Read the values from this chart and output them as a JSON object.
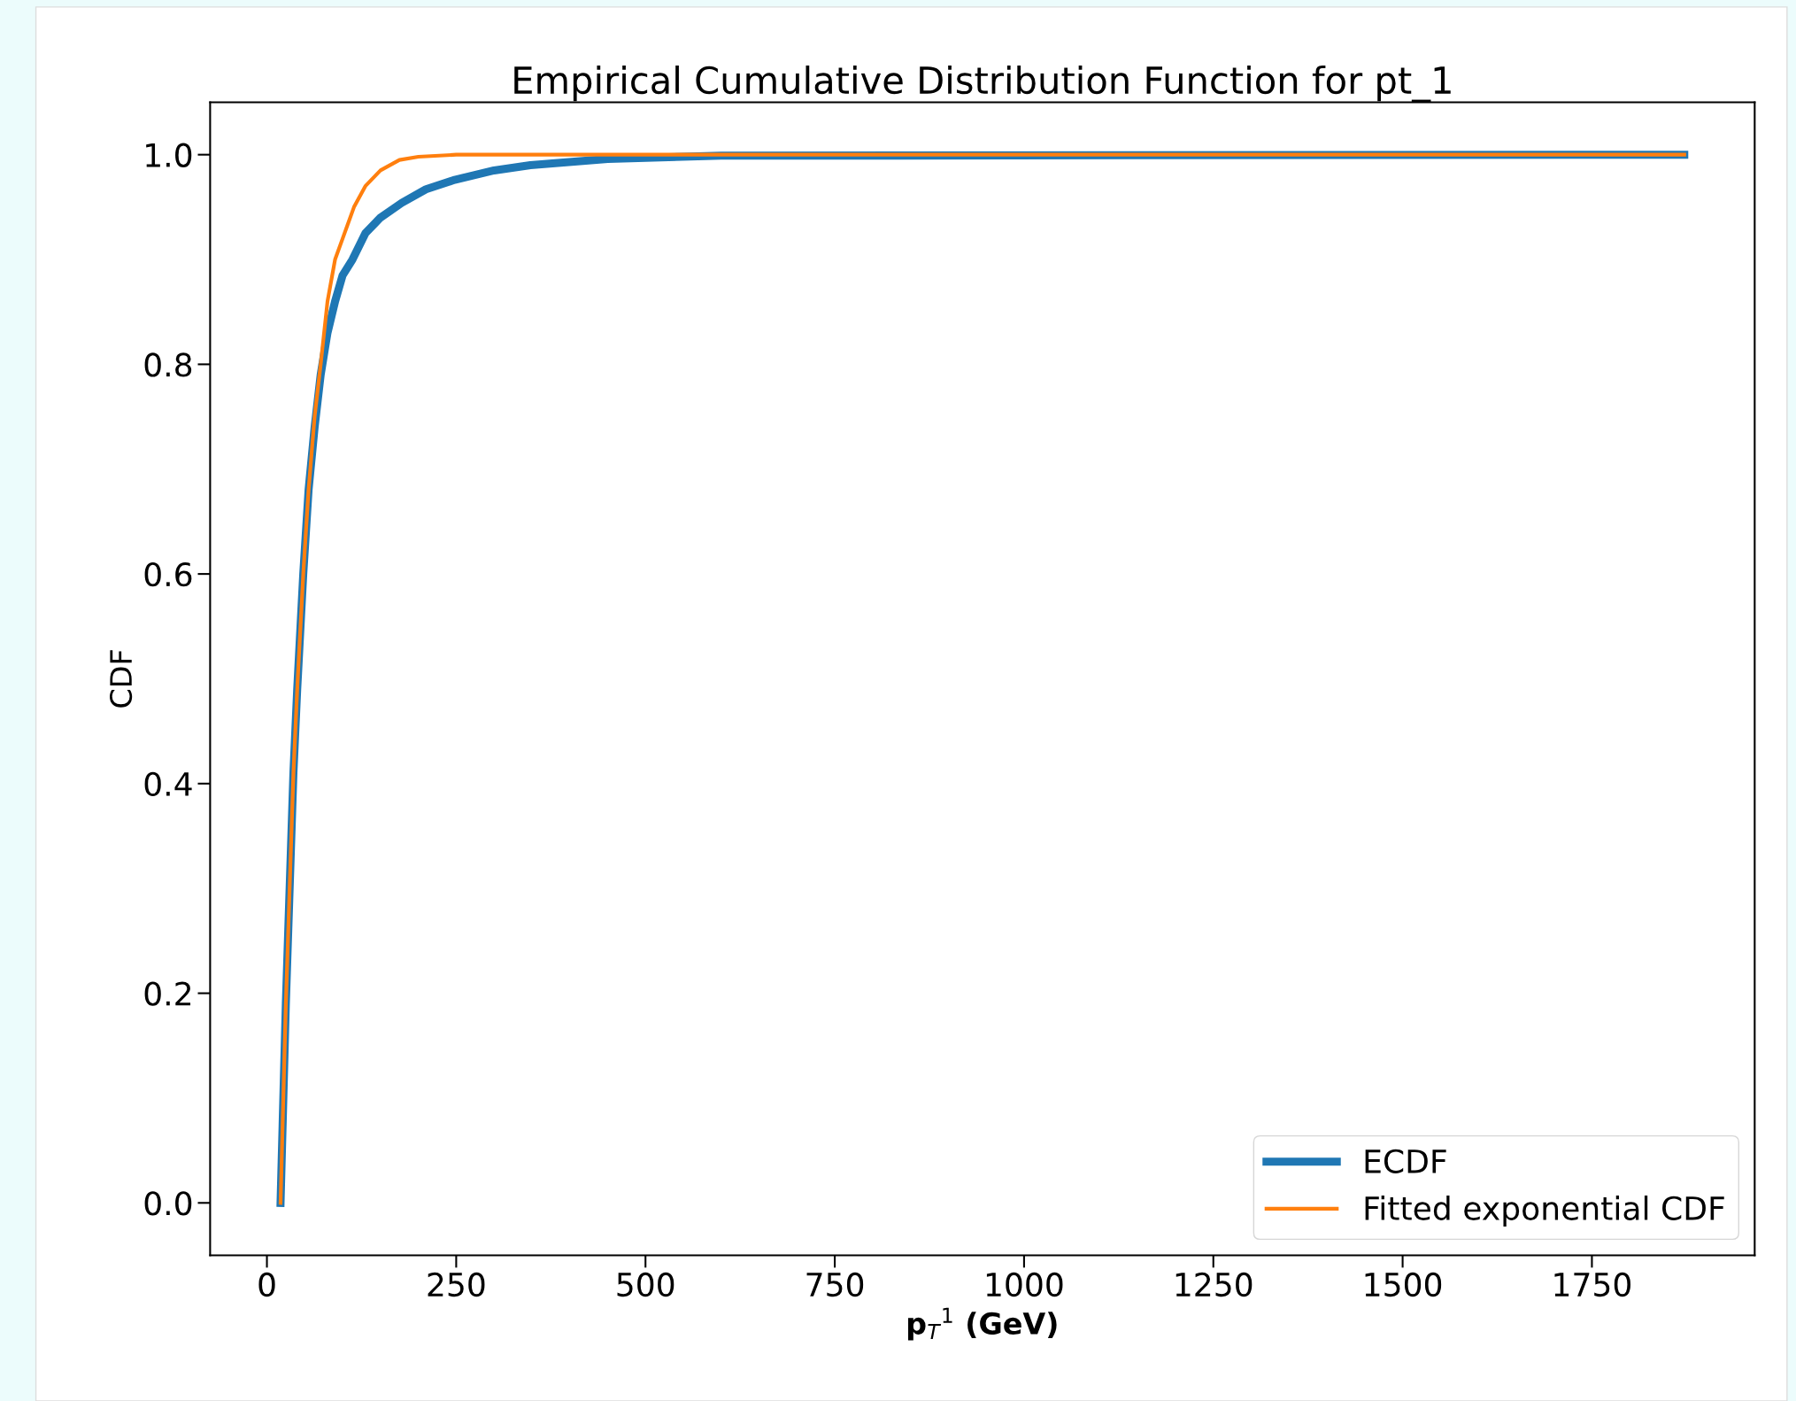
{
  "chart_data": {
    "type": "line",
    "title": "Empirical Cumulative Distribution Function for pt_1",
    "xlabel": "p$_{T}$$^{1}$ (GeV)",
    "ylabel": "CDF",
    "xlim": [
      -75,
      1965
    ],
    "ylim": [
      -0.05,
      1.05
    ],
    "xticks": [
      0,
      250,
      500,
      750,
      1000,
      1250,
      1500,
      1750
    ],
    "yticks": [
      {
        "value": 0,
        "label": "0.0"
      },
      {
        "value": 0.2,
        "label": "0.2"
      },
      {
        "value": 0.4,
        "label": "0.4"
      },
      {
        "value": 0.6,
        "label": "0.6"
      },
      {
        "value": 0.8,
        "label": "0.8"
      },
      {
        "value": 1.0,
        "label": "1.0"
      }
    ],
    "legend": "bottom right",
    "grid": false,
    "marker": "none",
    "line_style": "solid",
    "series": [
      {
        "name": "ECDF",
        "color": "#1f77b4",
        "x": [
          18,
          25,
          30,
          35,
          40,
          48,
          55,
          63,
          71,
          80,
          90,
          100,
          113,
          130,
          150,
          178,
          210,
          248,
          300,
          348,
          450,
          600,
          1872
        ],
        "values": [
          0,
          0.19,
          0.3,
          0.41,
          0.49,
          0.6,
          0.68,
          0.74,
          0.79,
          0.83,
          0.86,
          0.885,
          0.9,
          0.925,
          0.94,
          0.954,
          0.967,
          0.976,
          0.985,
          0.99,
          0.996,
          0.999,
          1.0
        ]
      },
      {
        "name": "Fitted exponential CDF",
        "color": "#ff7f0e",
        "x": [
          18,
          25,
          30,
          35,
          40,
          48,
          55,
          63,
          71,
          80,
          90,
          100,
          115,
          130,
          150,
          175,
          200,
          250,
          1872
        ],
        "values": [
          0,
          0.19,
          0.3,
          0.41,
          0.49,
          0.6,
          0.68,
          0.75,
          0.8,
          0.86,
          0.9,
          0.92,
          0.95,
          0.97,
          0.985,
          0.995,
          0.998,
          1.0,
          1.0
        ]
      }
    ]
  }
}
